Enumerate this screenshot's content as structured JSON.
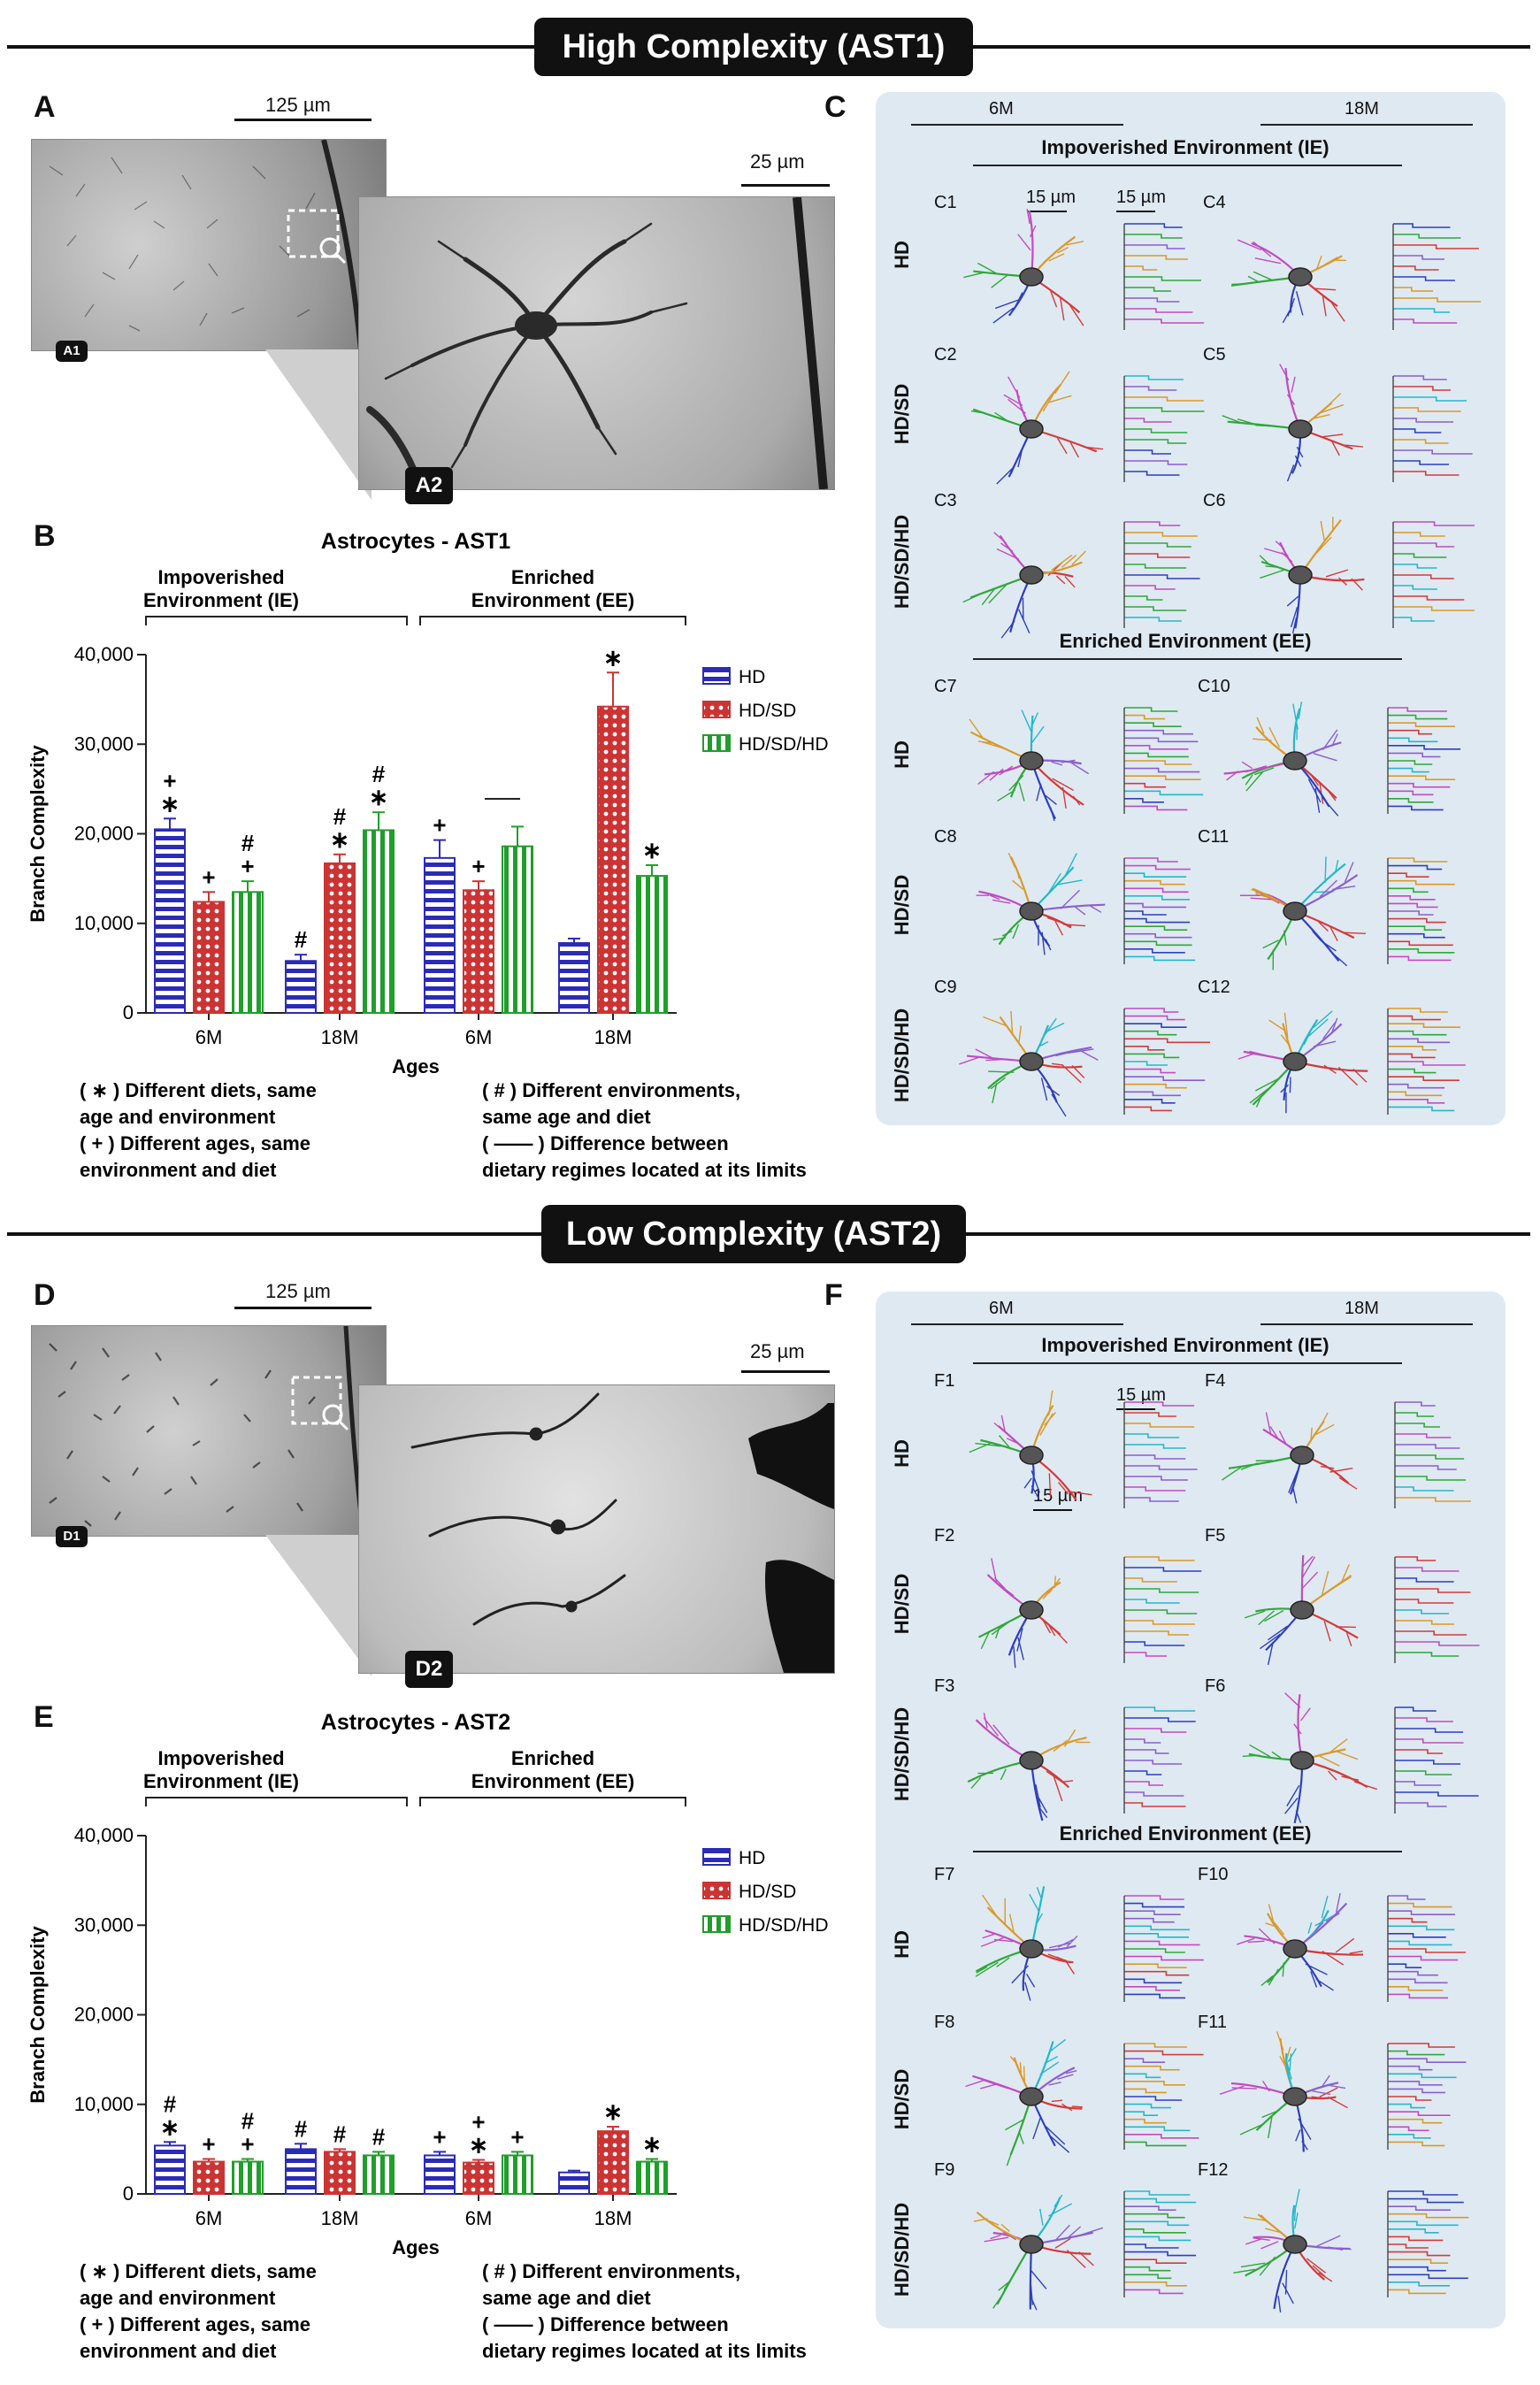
{
  "sections": {
    "high": "High Complexity (AST1)",
    "low": "Low Complexity (AST2)"
  },
  "panels": {
    "A": "A",
    "B": "B",
    "C": "C",
    "D": "D",
    "E": "E",
    "F": "F",
    "A1": "A1",
    "A2": "A2",
    "D1": "D1",
    "D2": "D2"
  },
  "scalebars": {
    "s125": "125 µm",
    "s25": "25 µm",
    "s15": "15 µm"
  },
  "group_labels": {
    "imp_env_abbrev": "Impoverished Environment (IE)",
    "enr_env_abbrev": "Enriched Environment (EE)",
    "age6": "6M",
    "age18": "18M"
  },
  "row_labels": {
    "hd": "HD",
    "hdsd": "HD/SD",
    "hdsdhd": "HD/SD/HD"
  },
  "c_cells": [
    "C1",
    "C2",
    "C3",
    "C4",
    "C5",
    "C6",
    "C7",
    "C8",
    "C9",
    "C10",
    "C11",
    "C12"
  ],
  "f_cells": [
    "F1",
    "F2",
    "F3",
    "F4",
    "F5",
    "F6",
    "F7",
    "F8",
    "F9",
    "F10",
    "F11",
    "F12"
  ],
  "notes": {
    "diets": "( ∗ ) Different diets, same age and environment",
    "ages": "( + ) Different ages, same environment and diet",
    "envs": "( # ) Different environments, same age and diet",
    "regimes": "( —— ) Difference between dietary regimes located at its limits"
  },
  "colors": {
    "hd": "#2b2bb8",
    "hdsd": "#cc3333",
    "hdsdhd": "#1f9e2a",
    "panel_bg": "#dfe9f2"
  },
  "chart_data": [
    {
      "type": "bar",
      "title": "Astrocytes - AST1",
      "ylabel": "Branch Complexity",
      "xlabel": "Ages",
      "ylim": [
        0,
        40000
      ],
      "yticks": [
        "0",
        "10,000",
        "20,000",
        "30,000",
        "40,000"
      ],
      "groups": [
        "6M",
        "18M",
        "6M",
        "18M"
      ],
      "group_headers": [
        "Impoverished\nEnvironment (IE)",
        "Enriched\nEnvironment (EE)"
      ],
      "series": [
        {
          "name": "HD",
          "values": [
            20500,
            5800,
            17300,
            7800
          ],
          "errors": [
            1200,
            700,
            2000,
            500
          ]
        },
        {
          "name": "HD/SD",
          "values": [
            12400,
            16700,
            13700,
            34200
          ],
          "errors": [
            1100,
            1000,
            1000,
            3800
          ]
        },
        {
          "name": "HD/SD/HD",
          "values": [
            13500,
            20400,
            18600,
            15300
          ],
          "errors": [
            1200,
            2000,
            2200,
            1200
          ]
        }
      ],
      "annotations": [
        [
          "+\n∗",
          "+",
          "#\n+",
          "+",
          "#\n∗",
          "#\n∗",
          "+",
          "+",
          "",
          "",
          "∗",
          "∗"
        ]
      ]
    },
    {
      "type": "bar",
      "title": "Astrocytes - AST2",
      "ylabel": "Branch Complexity",
      "xlabel": "Ages",
      "ylim": [
        0,
        40000
      ],
      "yticks": [
        "0",
        "10,000",
        "20,000",
        "30,000",
        "40,000"
      ],
      "groups": [
        "6M",
        "18M",
        "6M",
        "18M"
      ],
      "group_headers": [
        "Impoverished\nEnvironment (IE)",
        "Enriched\nEnvironment (EE)"
      ],
      "series": [
        {
          "name": "HD",
          "values": [
            5400,
            5000,
            4300,
            2400
          ],
          "errors": [
            400,
            600,
            400,
            200
          ]
        },
        {
          "name": "HD/SD",
          "values": [
            3600,
            4700,
            3500,
            7000
          ],
          "errors": [
            300,
            300,
            300,
            500
          ]
        },
        {
          "name": "HD/SD/HD",
          "values": [
            3600,
            4300,
            4300,
            3600
          ],
          "errors": [
            300,
            400,
            400,
            300
          ]
        }
      ]
    }
  ]
}
